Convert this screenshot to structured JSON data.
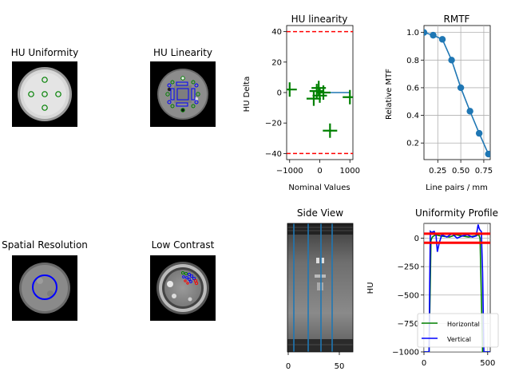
{
  "panels": {
    "uniformity_title": "HU Uniformity",
    "linearity_image_title": "HU Linearity",
    "spatial_title": "Spatial Resolution",
    "low_contrast_title": "Low Contrast",
    "side_view_title": "Side View",
    "side_view_xticks": [
      "0",
      "50"
    ]
  },
  "colors": {
    "green": "#008000",
    "blue": "#0000ff",
    "red": "#ff0000",
    "matplotlib_blue": "#1f77b4"
  },
  "chart_data": [
    {
      "id": "hu_linearity",
      "type": "scatter",
      "title": "HU linearity",
      "xlabel": "Nominal Values",
      "ylabel": "HU Delta",
      "xlim": [
        -1100,
        1100
      ],
      "ylim": [
        -44,
        44
      ],
      "xticks": [
        -1000,
        0,
        1000
      ],
      "yticks": [
        -40,
        -20,
        0,
        20,
        40
      ],
      "x": [
        -1000,
        -200,
        -100,
        -35,
        0,
        120,
        340,
        1000
      ],
      "y": [
        2,
        -4,
        1,
        3,
        -2,
        0,
        -25,
        -3
      ],
      "limit_lines": [
        40,
        -40
      ],
      "fit_line": {
        "x": [
          0,
          1000
        ],
        "y": [
          0,
          0
        ]
      },
      "grid": false
    },
    {
      "id": "rmtf",
      "type": "line",
      "title": "RMTF",
      "xlabel": "Line pairs / mm",
      "ylabel": "Relative MTF",
      "xlim": [
        0.1,
        0.82
      ],
      "ylim": [
        0.08,
        1.05
      ],
      "xticks": [
        0.25,
        0.5,
        0.75
      ],
      "xtick_labels": [
        "0.25",
        "0.50",
        "0.75"
      ],
      "yticks": [
        0.2,
        0.4,
        0.6,
        0.8,
        1.0
      ],
      "ytick_labels": [
        "0.2",
        "0.4",
        "0.6",
        "0.8",
        "1.0"
      ],
      "x": [
        0.1,
        0.2,
        0.3,
        0.4,
        0.5,
        0.6,
        0.7,
        0.8
      ],
      "y": [
        1.0,
        0.98,
        0.95,
        0.8,
        0.6,
        0.43,
        0.27,
        0.12
      ],
      "grid": true
    },
    {
      "id": "uniformity_profile",
      "type": "line",
      "title": "Uniformity Profile",
      "ylabel": "HU",
      "xlim": [
        0,
        520
      ],
      "ylim": [
        -1000,
        130
      ],
      "xticks": [
        0,
        500
      ],
      "yticks": [
        -1000,
        -750,
        -500,
        -250,
        0
      ],
      "limit_lines": [
        40,
        -40
      ],
      "legend": "lower right",
      "series": [
        {
          "name": "Horizontal",
          "color": "#008000",
          "x": [
            0,
            40,
            48,
            55,
            65,
            90,
            130,
            200,
            250,
            300,
            350,
            400,
            430,
            440,
            450,
            460,
            470,
            520
          ],
          "y": [
            -1000,
            -1000,
            -500,
            -20,
            10,
            30,
            20,
            10,
            30,
            20,
            10,
            20,
            30,
            0,
            -500,
            -1000,
            -1000,
            -1000
          ]
        },
        {
          "name": "Vertical",
          "color": "#0000ff",
          "x": [
            0,
            40,
            45,
            50,
            60,
            80,
            95,
            105,
            120,
            140,
            180,
            220,
            260,
            300,
            340,
            380,
            410,
            425,
            432,
            440,
            450,
            460,
            470,
            520
          ],
          "y": [
            -1000,
            -1000,
            -400,
            60,
            50,
            60,
            20,
            -120,
            -40,
            30,
            10,
            40,
            0,
            20,
            30,
            10,
            20,
            120,
            90,
            70,
            60,
            -300,
            -1000,
            -1000
          ]
        }
      ],
      "grid": true
    }
  ]
}
